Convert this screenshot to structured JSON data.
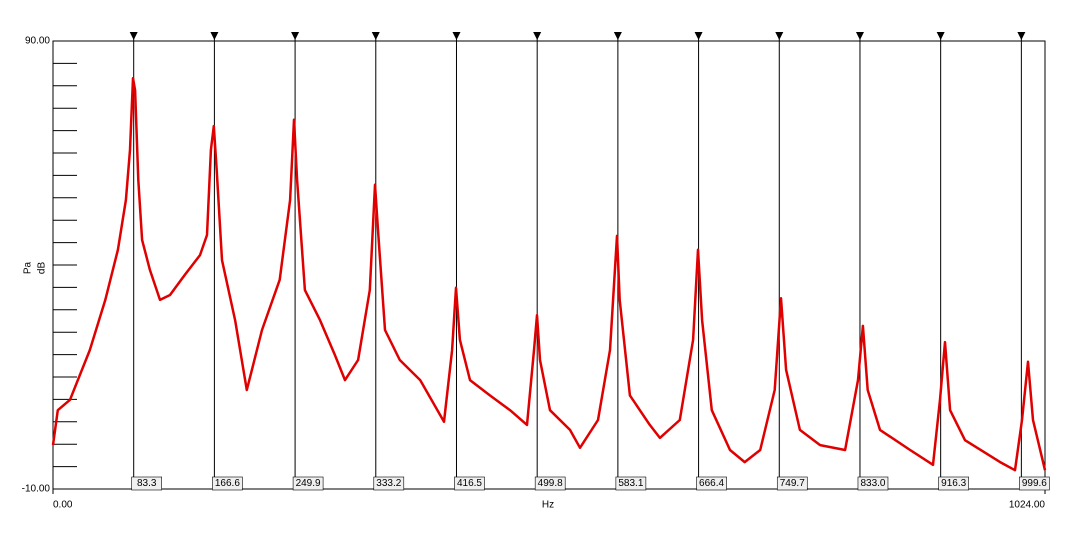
{
  "chart_data": {
    "type": "line",
    "y_label_lines": [
      "Pa",
      "dB"
    ],
    "x_label": "Hz",
    "xlim": [
      0,
      1024
    ],
    "xticks": [
      {
        "value": 0,
        "label": "0.00"
      },
      {
        "value": 1024,
        "label": "1024.00"
      }
    ],
    "ylim": [
      -10,
      90
    ],
    "yticks": [
      {
        "value": 90,
        "label": "90.00"
      },
      {
        "value": -10,
        "label": "-10.00"
      }
    ],
    "yminor_ticks": [
      -5,
      0,
      5,
      10,
      15,
      20,
      25,
      30,
      35,
      40,
      45,
      50,
      55,
      60,
      65,
      70,
      75,
      80,
      85
    ],
    "markers": [
      83.3,
      166.6,
      249.9,
      333.2,
      416.5,
      499.8,
      583.1,
      666.4,
      749.7,
      833.0,
      916.3,
      999.6
    ],
    "marker_labels": [
      "83.3",
      "166.6",
      "249.9",
      "333.2",
      "416.5",
      "499.8",
      "583.1",
      "666.4",
      "749.7",
      "833.0",
      "916.3",
      "999.6"
    ],
    "series": [
      {
        "color": "#e00000",
        "x": [
          0,
          5,
          17.5,
          38,
          54,
          67,
          75.3,
          79.5,
          82.6,
          84.7,
          88,
          92,
          100,
          110.5,
          120.8,
          136,
          151.7,
          159,
          163,
          166,
          169,
          174.5,
          188,
          200,
          215.7,
          234,
          244.7,
          248.8,
          252,
          260,
          275.6,
          291,
          301.4,
          314.9,
          327,
          332.4,
          335.5,
          342.7,
          358,
          379,
          403.6,
          412,
          416,
          420,
          430.5,
          451,
          471.8,
          489.3,
          496.5,
          499.6,
          502.7,
          513,
          533.7,
          544,
          562.6,
          575,
          582.2,
          585,
          595.5,
          616,
          626.5,
          647,
          660.7,
          665.8,
          670,
          680,
          698.8,
          714,
          730,
          745,
          751.5,
          756.7,
          771,
          791.8,
          817.6,
          831,
          836,
          841,
          853.7,
          884.7,
          908.4,
          915.6,
          920.8,
          926,
          941.4,
          977.6,
          993,
          1000.3,
          1006.5,
          1011.6,
          1024
        ],
        "values": [
          -0.2,
          7.6,
          9.9,
          21,
          32.2,
          43.4,
          54.5,
          65.7,
          81.7,
          79,
          59,
          45.6,
          38.9,
          32.2,
          33.3,
          37.8,
          42.2,
          46.7,
          65.7,
          71,
          61.2,
          41.1,
          27.7,
          12.1,
          25.5,
          36.7,
          54.5,
          72.4,
          59,
          34.4,
          27.7,
          19.9,
          14.3,
          18.8,
          34.4,
          57.9,
          47.8,
          25.5,
          18.8,
          14.3,
          5,
          21,
          34.9,
          23.3,
          14.3,
          10.9,
          7.6,
          4.3,
          21,
          28.8,
          18.8,
          7.6,
          3.2,
          -0.8,
          5.4,
          21,
          46.5,
          32.2,
          10.9,
          4.3,
          1.4,
          5.4,
          23.3,
          43.4,
          27.7,
          7.6,
          -1.3,
          -4,
          -1.3,
          12.1,
          32.6,
          16.6,
          3.2,
          -0.2,
          -1.3,
          14.3,
          26.4,
          12.1,
          3.2,
          -1.3,
          -4.6,
          9.9,
          22.8,
          7.6,
          0.9,
          -4,
          -5.8,
          5.4,
          18.4,
          5.4,
          -5.8
        ]
      }
    ]
  }
}
